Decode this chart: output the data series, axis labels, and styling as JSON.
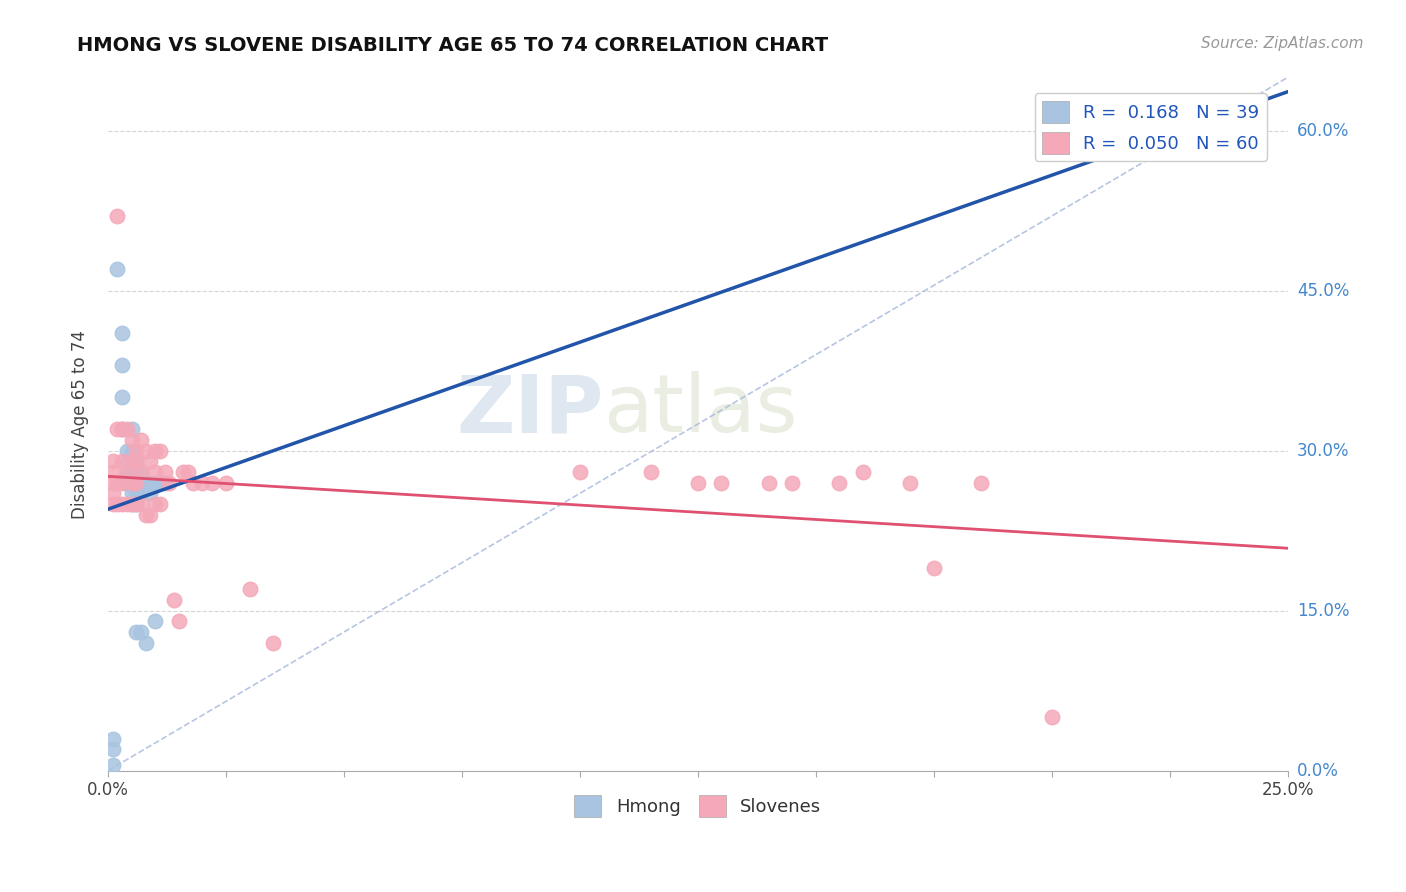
{
  "title": "HMONG VS SLOVENE DISABILITY AGE 65 TO 74 CORRELATION CHART",
  "source_text": "Source: ZipAtlas.com",
  "ylabel": "Disability Age 65 to 74",
  "xlabel": "",
  "xlim": [
    0.0,
    0.25
  ],
  "ylim": [
    0.0,
    0.65
  ],
  "xticks": [
    0.0,
    0.025,
    0.05,
    0.075,
    0.1,
    0.125,
    0.15,
    0.175,
    0.2,
    0.225,
    0.25
  ],
  "yticks": [
    0.0,
    0.15,
    0.3,
    0.45,
    0.6
  ],
  "ytick_labels_right": [
    "0.0%",
    "15.0%",
    "30.0%",
    "45.0%",
    "60.0%"
  ],
  "xtick_labels": [
    "0.0%",
    "",
    "",
    "",
    "",
    "",
    "",
    "",
    "",
    "",
    "25.0%"
  ],
  "hmong_color": "#a8c4e0",
  "slovene_color": "#f4a8b8",
  "hmong_line_color": "#2255aa",
  "slovene_line_color": "#e05070",
  "diagonal_color": "#aabbdd",
  "watermark_zip": "ZIP",
  "watermark_atlas": "atlas",
  "hmong_R": 0.168,
  "hmong_N": 39,
  "slovene_R": 0.05,
  "slovene_N": 60,
  "hmong_x": [
    0.001,
    0.001,
    0.001,
    0.002,
    0.003,
    0.003,
    0.003,
    0.003,
    0.004,
    0.004,
    0.004,
    0.004,
    0.004,
    0.005,
    0.005,
    0.005,
    0.005,
    0.005,
    0.005,
    0.005,
    0.006,
    0.006,
    0.006,
    0.006,
    0.006,
    0.006,
    0.006,
    0.007,
    0.007,
    0.007,
    0.007,
    0.008,
    0.008,
    0.009,
    0.009,
    0.01,
    0.01,
    0.011,
    0.012
  ],
  "hmong_y": [
    0.03,
    0.02,
    0.005,
    0.47,
    0.41,
    0.38,
    0.35,
    0.32,
    0.3,
    0.29,
    0.28,
    0.27,
    0.27,
    0.32,
    0.3,
    0.28,
    0.27,
    0.27,
    0.26,
    0.25,
    0.29,
    0.28,
    0.27,
    0.27,
    0.26,
    0.25,
    0.13,
    0.28,
    0.27,
    0.26,
    0.13,
    0.27,
    0.12,
    0.27,
    0.26,
    0.14,
    0.27,
    0.27,
    0.27
  ],
  "slovene_x": [
    0.001,
    0.001,
    0.001,
    0.001,
    0.001,
    0.002,
    0.002,
    0.002,
    0.002,
    0.003,
    0.003,
    0.003,
    0.003,
    0.004,
    0.004,
    0.004,
    0.005,
    0.005,
    0.005,
    0.005,
    0.006,
    0.006,
    0.006,
    0.006,
    0.007,
    0.007,
    0.007,
    0.008,
    0.008,
    0.009,
    0.009,
    0.01,
    0.01,
    0.01,
    0.011,
    0.011,
    0.012,
    0.013,
    0.014,
    0.015,
    0.016,
    0.017,
    0.018,
    0.02,
    0.022,
    0.025,
    0.03,
    0.035,
    0.1,
    0.115,
    0.125,
    0.13,
    0.14,
    0.145,
    0.155,
    0.16,
    0.17,
    0.175,
    0.185,
    0.2
  ],
  "slovene_y": [
    0.29,
    0.28,
    0.27,
    0.26,
    0.25,
    0.52,
    0.32,
    0.27,
    0.25,
    0.32,
    0.29,
    0.27,
    0.25,
    0.32,
    0.28,
    0.25,
    0.31,
    0.29,
    0.27,
    0.25,
    0.3,
    0.29,
    0.27,
    0.25,
    0.31,
    0.28,
    0.25,
    0.3,
    0.24,
    0.29,
    0.24,
    0.3,
    0.28,
    0.25,
    0.3,
    0.25,
    0.28,
    0.27,
    0.16,
    0.14,
    0.28,
    0.28,
    0.27,
    0.27,
    0.27,
    0.27,
    0.17,
    0.12,
    0.28,
    0.28,
    0.27,
    0.27,
    0.27,
    0.27,
    0.27,
    0.28,
    0.27,
    0.19,
    0.27,
    0.05
  ],
  "tick_color": "#4488cc",
  "title_fontsize": 14,
  "source_fontsize": 11,
  "label_fontsize": 12,
  "tick_fontsize": 12
}
